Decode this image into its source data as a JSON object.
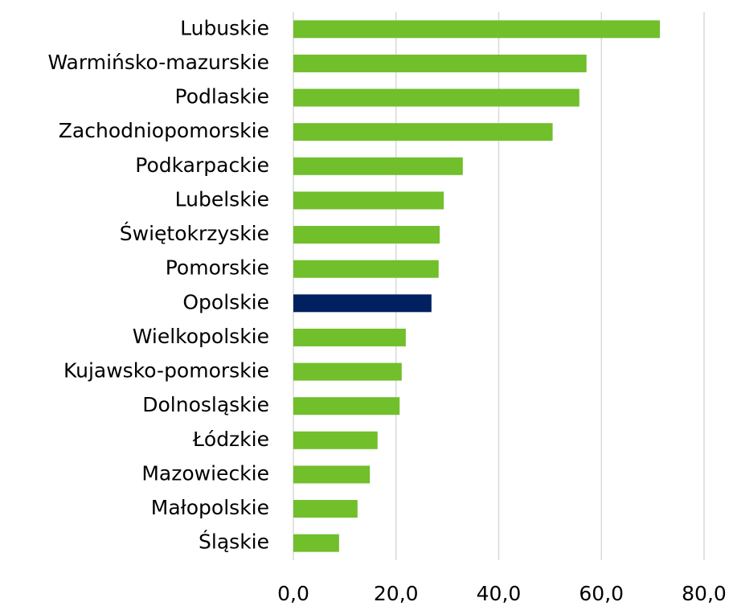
{
  "chart_data": {
    "type": "hbar",
    "categories": [
      "Lubuskie",
      "Warmińsko-mazurskie",
      "Podlaskie",
      "Zachodniopomorskie",
      "Podkarpackie",
      "Lubelskie",
      "Świętokrzyskie",
      "Pomorskie",
      "Opolskie",
      "Wielkopolskie",
      "Kujawsko-pomorskie",
      "Dolnosląskie",
      "Łódzkie",
      "Mazowieckie",
      "Małopolskie",
      "Śląskie"
    ],
    "values": [
      71.4,
      57.1,
      55.7,
      50.5,
      33.0,
      29.3,
      28.5,
      28.3,
      26.9,
      21.9,
      21.1,
      20.7,
      16.4,
      14.9,
      12.5,
      8.9
    ],
    "colors": [
      "#70bf2b",
      "#70bf2b",
      "#70bf2b",
      "#70bf2b",
      "#70bf2b",
      "#70bf2b",
      "#70bf2b",
      "#70bf2b",
      "#002060",
      "#70bf2b",
      "#70bf2b",
      "#70bf2b",
      "#70bf2b",
      "#70bf2b",
      "#70bf2b",
      "#70bf2b"
    ],
    "xlim": [
      0,
      80
    ],
    "xticks": [
      {
        "value": 0,
        "label": "0,0"
      },
      {
        "value": 20,
        "label": "20,0"
      },
      {
        "value": 40,
        "label": "40,0"
      },
      {
        "value": 60,
        "label": "60,0"
      },
      {
        "value": 80,
        "label": "80,0"
      }
    ],
    "grid": true
  }
}
